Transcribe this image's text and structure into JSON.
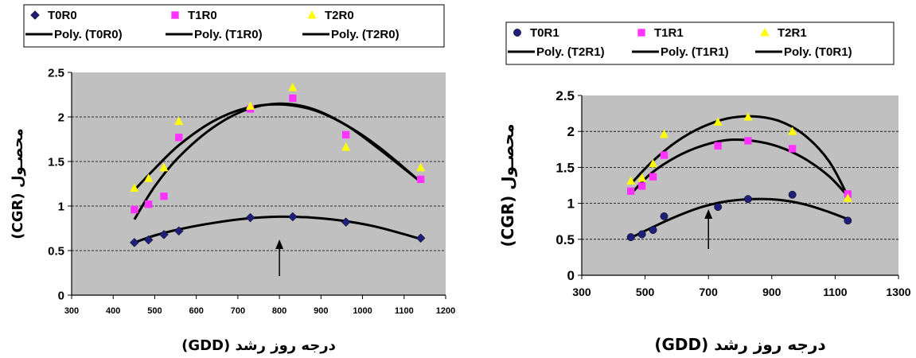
{
  "chart_data": [
    {
      "type": "scatter",
      "title": "",
      "xlabel": "درجه روز رشد (GDD)",
      "ylabel": "محصـول (CGR)",
      "xlim": [
        300,
        1200
      ],
      "ylim": [
        0,
        2.5
      ],
      "xticks": [
        "300",
        "400",
        "500",
        "600",
        "700",
        "800",
        "900",
        "1000",
        "1100",
        "1200"
      ],
      "yticks": [
        "0",
        "0.5",
        "1",
        "1.5",
        "2",
        "2.5"
      ],
      "grid": true,
      "legend": "top",
      "annotation": "arrow at x≈800",
      "series": [
        {
          "name": "T0R0",
          "marker": "diamond",
          "color": "#1f1f7a",
          "x": [
            451,
            485,
            522,
            558,
            730,
            832,
            960,
            1140
          ],
          "y": [
            0.59,
            0.62,
            0.68,
            0.72,
            0.87,
            0.88,
            0.82,
            0.64
          ]
        },
        {
          "name": "T1R0",
          "marker": "square",
          "color": "#ff33ff",
          "x": [
            451,
            485,
            522,
            558,
            730,
            832,
            960,
            1140
          ],
          "y": [
            0.96,
            1.02,
            1.11,
            1.77,
            2.09,
            2.21,
            1.8,
            1.3
          ]
        },
        {
          "name": "T2R0",
          "marker": "triangle",
          "color": "#ffff00",
          "x": [
            451,
            485,
            522,
            558,
            730,
            832,
            960,
            1140
          ],
          "y": [
            1.2,
            1.31,
            1.43,
            1.95,
            2.12,
            2.33,
            1.66,
            1.43
          ]
        }
      ],
      "trendlines": [
        {
          "name": "Poly. (T0R0)",
          "x": [
            451,
            500,
            560,
            640,
            720,
            800,
            880,
            960,
            1040,
            1140
          ],
          "y": [
            0.59,
            0.67,
            0.74,
            0.81,
            0.86,
            0.88,
            0.87,
            0.83,
            0.76,
            0.63
          ]
        },
        {
          "name": "Poly. (T1R0)",
          "x": [
            451,
            500,
            560,
            640,
            720,
            800,
            880,
            960,
            1040,
            1140
          ],
          "y": [
            0.85,
            1.22,
            1.56,
            1.88,
            2.08,
            2.15,
            2.09,
            1.91,
            1.64,
            1.27
          ]
        },
        {
          "name": "Poly. (T2R0)",
          "x": [
            451,
            500,
            560,
            640,
            720,
            800,
            880,
            960,
            1040,
            1140
          ],
          "y": [
            1.18,
            1.42,
            1.69,
            1.95,
            2.1,
            2.14,
            2.08,
            1.91,
            1.66,
            1.27
          ]
        }
      ]
    },
    {
      "type": "scatter",
      "title": "",
      "xlabel": "درجه روز رشد (GDD)",
      "ylabel": "محصـول (CGR)",
      "xlim": [
        300,
        1300
      ],
      "ylim": [
        0,
        2.5
      ],
      "xticks": [
        "300",
        "500",
        "700",
        "900",
        "1100",
        "1300"
      ],
      "yticks": [
        "0",
        "0.5",
        "1",
        "1.5",
        "2",
        "2.5"
      ],
      "grid": true,
      "legend": "top",
      "annotation": "arrow at x≈700",
      "series": [
        {
          "name": "T0R1",
          "marker": "circle",
          "color": "#1f1f7a",
          "x": [
            455,
            490,
            525,
            560,
            730,
            825,
            965,
            1140
          ],
          "y": [
            0.53,
            0.57,
            0.63,
            0.82,
            0.95,
            1.06,
            1.12,
            0.76
          ]
        },
        {
          "name": "T1R1",
          "marker": "square",
          "color": "#ff33ff",
          "x": [
            455,
            490,
            525,
            560,
            730,
            825,
            965,
            1140
          ],
          "y": [
            1.17,
            1.24,
            1.37,
            1.67,
            1.8,
            1.87,
            1.76,
            1.13
          ]
        },
        {
          "name": "T2R1",
          "marker": "triangle",
          "color": "#ffff00",
          "x": [
            455,
            490,
            525,
            560,
            730,
            825,
            965,
            1140
          ],
          "y": [
            1.31,
            1.35,
            1.55,
            1.96,
            2.13,
            2.2,
            2.0,
            1.07
          ]
        }
      ],
      "trendlines": [
        {
          "name": "Poly. (T2R1)",
          "x": [
            455,
            520,
            600,
            680,
            760,
            840,
            920,
            1000,
            1080,
            1140
          ],
          "y": [
            1.27,
            1.57,
            1.86,
            2.06,
            2.18,
            2.21,
            2.15,
            1.96,
            1.59,
            1.1
          ]
        },
        {
          "name": "Poly. (T1R1)",
          "x": [
            455,
            520,
            600,
            680,
            760,
            840,
            920,
            1000,
            1080,
            1140
          ],
          "y": [
            1.13,
            1.42,
            1.65,
            1.8,
            1.88,
            1.87,
            1.79,
            1.63,
            1.38,
            1.1
          ]
        },
        {
          "name": "Poly. (T0R1)",
          "x": [
            455,
            520,
            600,
            680,
            760,
            840,
            920,
            1000,
            1080,
            1140
          ],
          "y": [
            0.52,
            0.66,
            0.82,
            0.95,
            1.03,
            1.06,
            1.05,
            0.99,
            0.88,
            0.78
          ]
        }
      ]
    }
  ]
}
